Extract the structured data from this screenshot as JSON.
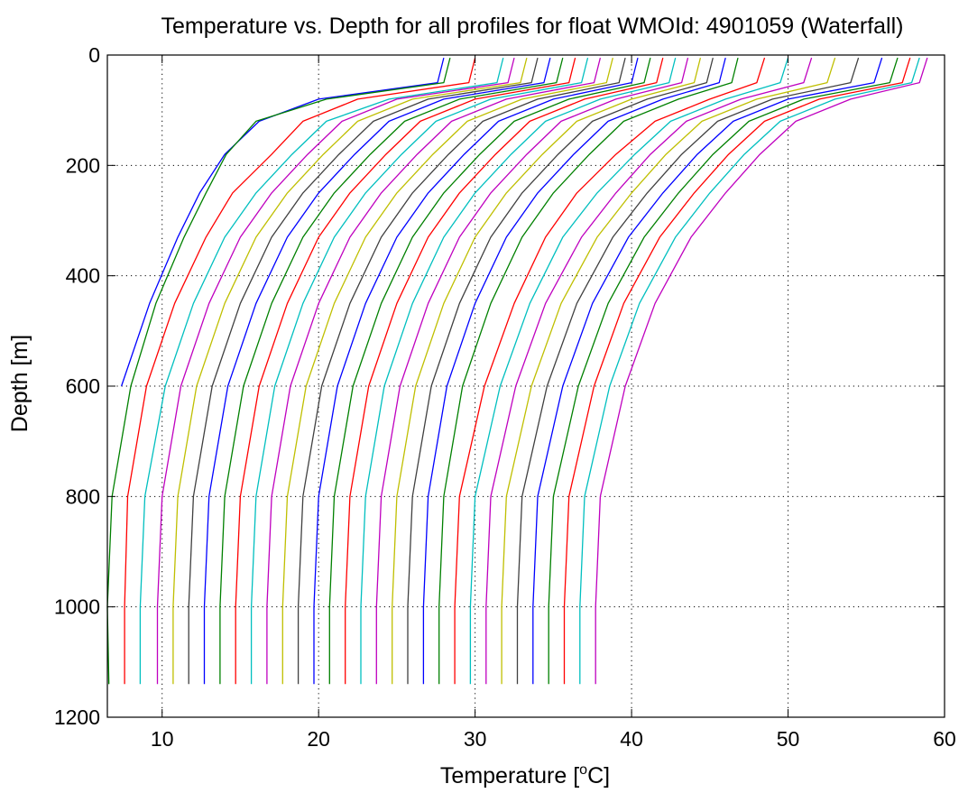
{
  "chart_data": {
    "type": "line",
    "title": "Temperature vs. Depth for all profiles for float WMOId: 4901059 (Waterfall)",
    "xlabel_main": "Temperature [",
    "xlabel_sup": "o",
    "xlabel_tail": "C]",
    "ylabel": "Depth [m]",
    "xlim": [
      6.5,
      60
    ],
    "ylim": [
      0,
      1200
    ],
    "y_reversed": true,
    "grid": true,
    "x_ticks": [
      10,
      20,
      30,
      40,
      50,
      60
    ],
    "y_ticks": [
      0,
      200,
      400,
      600,
      800,
      1000,
      1200
    ],
    "x_tick_labels": [
      "10",
      "20",
      "30",
      "40",
      "50",
      "60"
    ],
    "y_tick_labels": [
      "0",
      "200",
      "400",
      "600",
      "800",
      "1000",
      "1200"
    ],
    "colors": [
      "#0000ff",
      "#008000",
      "#ff0000",
      "#00bfbf",
      "#bf00bf",
      "#bfbf00",
      "#404040"
    ],
    "depth_levels": [
      5,
      50,
      80,
      120,
      180,
      250,
      330,
      450,
      600,
      800,
      1000,
      1140
    ],
    "series": [
      {
        "values": [
          28.0,
          27.6,
          20.0,
          16.2,
          14.0,
          12.4,
          11.0,
          9.2,
          7.4,
          null,
          null,
          null
        ]
      },
      {
        "values": [
          28.4,
          28.0,
          20.5,
          16.0,
          14.1,
          12.8,
          11.4,
          9.6,
          8.0,
          6.8,
          6.5,
          6.6
        ]
      },
      {
        "values": [
          30.0,
          29.6,
          22.5,
          19.0,
          17.0,
          14.5,
          12.8,
          10.8,
          9.0,
          7.8,
          7.6,
          7.6
        ]
      },
      {
        "values": [
          31.8,
          31.4,
          24.5,
          20.5,
          18.3,
          16.0,
          14.0,
          12.0,
          10.2,
          8.9,
          8.6,
          8.6
        ]
      },
      {
        "values": [
          32.5,
          32.1,
          25.0,
          21.5,
          19.3,
          17.0,
          15.0,
          13.0,
          11.2,
          10.0,
          9.7,
          9.7
        ]
      },
      {
        "values": [
          33.3,
          32.9,
          26.0,
          22.5,
          20.3,
          18.0,
          16.0,
          14.0,
          12.2,
          11.0,
          10.7,
          10.7
        ]
      },
      {
        "values": [
          34.0,
          33.6,
          27.0,
          23.5,
          21.3,
          19.0,
          17.0,
          15.0,
          13.2,
          12.0,
          11.7,
          11.7
        ]
      },
      {
        "values": [
          34.8,
          34.4,
          28.0,
          24.5,
          22.3,
          20.0,
          18.0,
          16.0,
          14.2,
          13.0,
          12.7,
          12.7
        ]
      },
      {
        "values": [
          35.6,
          35.2,
          29.0,
          25.5,
          23.3,
          21.0,
          19.0,
          17.0,
          15.2,
          14.0,
          13.7,
          13.7
        ]
      },
      {
        "values": [
          36.4,
          36.0,
          30.0,
          26.5,
          24.3,
          22.0,
          20.0,
          18.0,
          16.2,
          15.0,
          14.7,
          14.7
        ]
      },
      {
        "values": [
          37.2,
          36.8,
          31.0,
          27.5,
          25.3,
          23.0,
          21.0,
          19.0,
          17.2,
          16.0,
          15.7,
          15.7
        ]
      },
      {
        "values": [
          38.0,
          37.6,
          32.0,
          28.5,
          26.3,
          24.0,
          22.0,
          20.0,
          18.2,
          17.0,
          16.7,
          16.7
        ]
      },
      {
        "values": [
          38.8,
          38.4,
          33.0,
          29.5,
          27.3,
          25.0,
          23.0,
          21.0,
          19.2,
          18.0,
          17.7,
          17.7
        ]
      },
      {
        "values": [
          39.6,
          39.2,
          34.0,
          30.5,
          28.3,
          26.0,
          24.0,
          22.0,
          20.2,
          19.0,
          18.7,
          18.7
        ]
      },
      {
        "values": [
          40.4,
          40.0,
          35.0,
          31.5,
          29.3,
          27.0,
          25.0,
          23.0,
          21.2,
          20.0,
          19.7,
          19.7
        ]
      },
      {
        "values": [
          41.2,
          40.8,
          36.0,
          32.5,
          30.3,
          28.0,
          26.0,
          24.0,
          22.2,
          21.0,
          20.7,
          20.7
        ]
      },
      {
        "values": [
          42.0,
          41.6,
          37.0,
          33.5,
          31.3,
          29.0,
          27.0,
          25.0,
          23.2,
          22.0,
          21.7,
          21.7
        ]
      },
      {
        "values": [
          42.8,
          42.4,
          38.0,
          34.5,
          32.3,
          30.0,
          28.0,
          26.0,
          24.2,
          23.0,
          22.7,
          22.7
        ]
      },
      {
        "values": [
          43.6,
          43.2,
          39.0,
          35.5,
          33.3,
          31.0,
          29.0,
          27.0,
          25.2,
          24.0,
          23.7,
          23.7
        ]
      },
      {
        "values": [
          44.4,
          44.0,
          40.0,
          36.5,
          34.3,
          32.0,
          30.0,
          28.0,
          26.2,
          25.0,
          24.7,
          24.7
        ]
      },
      {
        "values": [
          45.2,
          44.8,
          41.0,
          37.5,
          35.3,
          33.0,
          31.0,
          29.0,
          27.2,
          26.0,
          25.7,
          25.7
        ]
      },
      {
        "values": [
          46.0,
          45.6,
          42.0,
          38.5,
          36.3,
          34.0,
          32.0,
          30.0,
          28.2,
          27.0,
          26.7,
          26.7
        ]
      },
      {
        "values": [
          46.8,
          46.4,
          43.0,
          39.5,
          37.3,
          35.0,
          33.0,
          31.0,
          29.2,
          28.0,
          27.7,
          27.7
        ]
      },
      {
        "values": [
          48.5,
          48.0,
          45.0,
          41.5,
          39.0,
          36.5,
          34.5,
          32.5,
          30.6,
          29.0,
          28.7,
          28.7
        ]
      },
      {
        "values": [
          50.0,
          49.5,
          46.0,
          42.5,
          40.2,
          37.8,
          35.6,
          33.5,
          31.6,
          30.0,
          29.7,
          29.7
        ]
      },
      {
        "values": [
          51.5,
          51.0,
          47.0,
          43.5,
          41.2,
          39.0,
          36.8,
          34.5,
          32.6,
          31.0,
          30.7,
          30.7
        ]
      },
      {
        "values": [
          53.0,
          52.5,
          48.0,
          44.5,
          42.2,
          40.0,
          37.8,
          35.5,
          33.6,
          32.0,
          31.7,
          31.7
        ]
      },
      {
        "values": [
          54.5,
          54.0,
          49.0,
          45.5,
          43.2,
          41.0,
          38.8,
          36.5,
          34.6,
          33.0,
          32.7,
          32.7
        ]
      },
      {
        "values": [
          56.0,
          55.5,
          50.0,
          46.5,
          44.2,
          42.0,
          39.8,
          37.5,
          35.6,
          34.0,
          33.7,
          33.7
        ]
      },
      {
        "values": [
          57.0,
          56.5,
          51.0,
          47.5,
          45.2,
          43.0,
          40.8,
          38.5,
          36.6,
          35.0,
          34.7,
          34.7
        ]
      },
      {
        "values": [
          57.8,
          57.3,
          52.0,
          48.5,
          46.2,
          44.0,
          41.8,
          39.5,
          37.6,
          36.0,
          35.7,
          35.7
        ]
      },
      {
        "values": [
          58.4,
          57.9,
          53.0,
          49.5,
          47.2,
          45.0,
          42.8,
          40.5,
          38.6,
          37.0,
          36.7,
          36.7
        ]
      },
      {
        "values": [
          58.9,
          58.4,
          54.0,
          50.5,
          48.2,
          46.0,
          43.8,
          41.5,
          39.6,
          38.0,
          37.7,
          37.7
        ]
      }
    ]
  }
}
